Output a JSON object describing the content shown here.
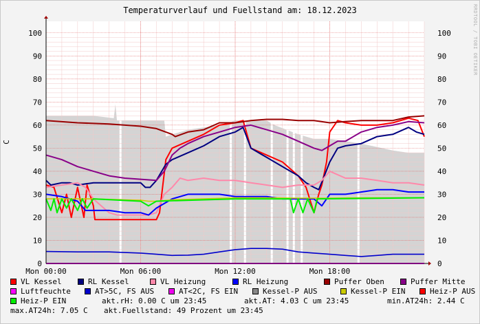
{
  "title": "Temperaturverlauf und Fuellstand am: 18.12.2023",
  "side_credit": "RRDTOOL / TOBI OETIKER",
  "chart_data": {
    "type": "line",
    "title": "Temperaturverlauf und Fuellstand am: 18.12.2023",
    "ylabel": "C",
    "ylim": [
      0,
      105
    ],
    "xlim": [
      0,
      24
    ],
    "yticks": [
      "0",
      "10",
      "20",
      "30",
      "40",
      "50",
      "60",
      "70",
      "80",
      "90",
      "100"
    ],
    "xticks": [
      {
        "t": 0,
        "label": "Mon 00:00"
      },
      {
        "t": 6,
        "label": "Mon 06:00"
      },
      {
        "t": 12,
        "label": "Mon 12:00"
      },
      {
        "t": 18,
        "label": "Mon 18:00"
      }
    ],
    "grid": true,
    "fuellstand_area": {
      "name": "Fuellstand",
      "color": "#d4d4d4",
      "points": [
        [
          0,
          64
        ],
        [
          3,
          64
        ],
        [
          4.3,
          63
        ],
        [
          4.4,
          69
        ],
        [
          4.5,
          62
        ],
        [
          6,
          62
        ],
        [
          7.5,
          62
        ],
        [
          7.6,
          55
        ],
        [
          8,
          56
        ],
        [
          9,
          58
        ],
        [
          11,
          60
        ],
        [
          12,
          62
        ],
        [
          14,
          62
        ],
        [
          14.5,
          60
        ],
        [
          16,
          56
        ],
        [
          17,
          54
        ],
        [
          18,
          54
        ],
        [
          19,
          53
        ],
        [
          20,
          52
        ],
        [
          22,
          49
        ],
        [
          23,
          48
        ],
        [
          24,
          48
        ]
      ],
      "gaps": [
        4.7,
        11.7,
        12.6,
        14.3,
        15.3,
        15.7,
        16.2,
        19.8
      ]
    },
    "series": [
      {
        "name": "VL Kessel",
        "color": "#ff0000",
        "points": [
          [
            0,
            34
          ],
          [
            0.5,
            33
          ],
          [
            1,
            22
          ],
          [
            1.3,
            30
          ],
          [
            1.6,
            20
          ],
          [
            2,
            33
          ],
          [
            2.4,
            20
          ],
          [
            2.6,
            34
          ],
          [
            3,
            25
          ],
          [
            3.1,
            19
          ],
          [
            5,
            19
          ],
          [
            7,
            19
          ],
          [
            7.2,
            22
          ],
          [
            7.6,
            45
          ],
          [
            8,
            50
          ],
          [
            9,
            53
          ],
          [
            10,
            56
          ],
          [
            11,
            60
          ],
          [
            12,
            61
          ],
          [
            12.5,
            62
          ],
          [
            13,
            50
          ],
          [
            14,
            47
          ],
          [
            15,
            44
          ],
          [
            16,
            38
          ],
          [
            16.5,
            33
          ],
          [
            17,
            22
          ],
          [
            17.3,
            30
          ],
          [
            17.5,
            34
          ],
          [
            17.8,
            44
          ],
          [
            18,
            57
          ],
          [
            18.5,
            62
          ],
          [
            19,
            61
          ],
          [
            20,
            60
          ],
          [
            21,
            60
          ],
          [
            22,
            61
          ],
          [
            23,
            63
          ],
          [
            23.6,
            62
          ],
          [
            24,
            55
          ]
        ]
      },
      {
        "name": "RL Kessel",
        "color": "#000080",
        "points": [
          [
            0,
            36
          ],
          [
            0.3,
            34
          ],
          [
            1,
            35
          ],
          [
            1.5,
            35
          ],
          [
            2,
            34
          ],
          [
            3,
            35
          ],
          [
            4,
            35
          ],
          [
            5,
            35
          ],
          [
            6,
            35
          ],
          [
            6.3,
            33
          ],
          [
            6.6,
            33
          ],
          [
            7,
            36
          ],
          [
            7.6,
            43
          ],
          [
            8,
            45
          ],
          [
            9,
            48
          ],
          [
            10,
            51
          ],
          [
            11,
            55
          ],
          [
            12,
            57
          ],
          [
            12.5,
            59
          ],
          [
            13,
            50
          ],
          [
            14,
            46
          ],
          [
            15,
            42
          ],
          [
            16,
            38
          ],
          [
            16.5,
            35
          ],
          [
            17,
            33
          ],
          [
            17.3,
            32
          ],
          [
            17.6,
            37
          ],
          [
            18,
            44
          ],
          [
            18.5,
            50
          ],
          [
            19,
            51
          ],
          [
            20,
            52
          ],
          [
            21,
            55
          ],
          [
            22,
            56
          ],
          [
            23,
            59
          ],
          [
            23.5,
            57
          ],
          [
            24,
            56
          ]
        ]
      },
      {
        "name": "VL Heizung",
        "color": "#ff88aa",
        "points": [
          [
            0,
            33
          ],
          [
            1,
            34
          ],
          [
            2,
            35
          ],
          [
            2.5,
            33
          ],
          [
            3,
            28
          ],
          [
            3.5,
            25
          ],
          [
            4,
            22
          ],
          [
            4.5,
            21
          ],
          [
            5,
            21
          ],
          [
            6,
            21
          ],
          [
            6.5,
            21
          ],
          [
            7,
            22
          ],
          [
            7.5,
            30
          ],
          [
            8,
            33
          ],
          [
            8.5,
            37
          ],
          [
            9,
            36
          ],
          [
            10,
            37
          ],
          [
            11,
            36
          ],
          [
            12,
            36
          ],
          [
            13,
            35
          ],
          [
            14,
            34
          ],
          [
            15,
            33
          ],
          [
            16,
            34
          ],
          [
            17,
            34
          ],
          [
            17.5,
            36
          ],
          [
            18,
            40
          ],
          [
            19,
            37
          ],
          [
            20,
            37
          ],
          [
            21,
            36
          ],
          [
            22,
            35
          ],
          [
            23,
            35
          ],
          [
            24,
            34
          ]
        ]
      },
      {
        "name": "RL Heizung",
        "color": "#0000ff",
        "points": [
          [
            0,
            30
          ],
          [
            1,
            29
          ],
          [
            2,
            27
          ],
          [
            2.5,
            23
          ],
          [
            3,
            23
          ],
          [
            4,
            23
          ],
          [
            5,
            22
          ],
          [
            6,
            22
          ],
          [
            6.5,
            21
          ],
          [
            7,
            24
          ],
          [
            8,
            28
          ],
          [
            9,
            30
          ],
          [
            10,
            30
          ],
          [
            11,
            30
          ],
          [
            12,
            29
          ],
          [
            13,
            29
          ],
          [
            14,
            29
          ],
          [
            15,
            28
          ],
          [
            16,
            28
          ],
          [
            17,
            28
          ],
          [
            17.5,
            25
          ],
          [
            18,
            30
          ],
          [
            19,
            30
          ],
          [
            20,
            31
          ],
          [
            21,
            32
          ],
          [
            22,
            32
          ],
          [
            23,
            31
          ],
          [
            24,
            31
          ]
        ]
      },
      {
        "name": "Puffer Oben",
        "color": "#990000",
        "points": [
          [
            0,
            62
          ],
          [
            2,
            61
          ],
          [
            4,
            60.5
          ],
          [
            6,
            59.5
          ],
          [
            7,
            58.5
          ],
          [
            8,
            56
          ],
          [
            8.2,
            55
          ],
          [
            9,
            57
          ],
          [
            10,
            58
          ],
          [
            11,
            61
          ],
          [
            12,
            61
          ],
          [
            13,
            62
          ],
          [
            14,
            62.5
          ],
          [
            15,
            62.5
          ],
          [
            16,
            62
          ],
          [
            17,
            62
          ],
          [
            18,
            61
          ],
          [
            19,
            61.5
          ],
          [
            20,
            62
          ],
          [
            21,
            62
          ],
          [
            22,
            62
          ],
          [
            23,
            63.5
          ],
          [
            24,
            64
          ]
        ]
      },
      {
        "name": "Puffer Mitte",
        "color": "#880088",
        "points": [
          [
            0,
            47
          ],
          [
            1,
            45
          ],
          [
            2,
            42
          ],
          [
            3,
            40
          ],
          [
            4,
            38
          ],
          [
            5,
            37
          ],
          [
            6,
            36.5
          ],
          [
            7,
            36
          ],
          [
            7.5,
            40
          ],
          [
            8,
            47
          ],
          [
            8.5,
            50
          ],
          [
            9,
            52
          ],
          [
            10,
            55
          ],
          [
            11,
            57
          ],
          [
            12,
            59
          ],
          [
            13,
            60
          ],
          [
            14,
            58
          ],
          [
            15,
            56
          ],
          [
            16,
            53
          ],
          [
            17,
            50
          ],
          [
            17.5,
            49
          ],
          [
            18,
            51
          ],
          [
            18.5,
            53
          ],
          [
            19,
            53
          ],
          [
            20,
            57
          ],
          [
            21,
            59
          ],
          [
            22,
            60
          ],
          [
            23,
            61.5
          ],
          [
            24,
            61
          ]
        ]
      },
      {
        "name": "Luftfeuchte",
        "color": "#ff00ff",
        "points": [
          [
            0,
            0
          ],
          [
            24,
            0
          ]
        ]
      },
      {
        "name": "AT>5C, FS AUS",
        "color": "#0000cc",
        "points": [
          [
            0,
            5.2
          ],
          [
            2,
            5
          ],
          [
            4,
            5
          ],
          [
            6,
            4.5
          ],
          [
            7,
            4
          ],
          [
            8,
            3.5
          ],
          [
            9,
            3.6
          ],
          [
            10,
            4
          ],
          [
            11,
            5
          ],
          [
            12,
            6
          ],
          [
            13,
            6.5
          ],
          [
            14,
            6.5
          ],
          [
            15,
            6.2
          ],
          [
            16,
            5
          ],
          [
            17,
            4.5
          ],
          [
            18,
            4
          ],
          [
            19,
            3.5
          ],
          [
            20,
            3
          ],
          [
            21,
            3.5
          ],
          [
            22,
            4
          ],
          [
            23,
            4
          ],
          [
            24,
            4
          ]
        ]
      },
      {
        "name": "AT<2C, FS EIN",
        "color": "#ee00ee",
        "points": []
      },
      {
        "name": "Kessel-P AUS",
        "color": "#888888",
        "points": []
      },
      {
        "name": "Kessel-P EIN",
        "color": "#cccc00",
        "points": [
          [
            0,
            28
          ],
          [
            3,
            28
          ],
          [
            5,
            27.6
          ],
          [
            6,
            27.4
          ],
          [
            6.5,
            27
          ],
          [
            7,
            27
          ],
          [
            8,
            27.6
          ],
          [
            10,
            28
          ],
          [
            12,
            28.5
          ],
          [
            14,
            28.5
          ],
          [
            16,
            28.3
          ],
          [
            18,
            28.3
          ],
          [
            20,
            28.5
          ],
          [
            22,
            28.5
          ],
          [
            24,
            28.5
          ]
        ]
      },
      {
        "name": "Heiz-P AUS",
        "color": "#ff0000",
        "points": []
      },
      {
        "name": "Heiz-P EIN",
        "color": "#00ee00",
        "points": [
          [
            0,
            28
          ],
          [
            0.3,
            23
          ],
          [
            0.5,
            28
          ],
          [
            0.7,
            22
          ],
          [
            1,
            28
          ],
          [
            1.3,
            24
          ],
          [
            1.6,
            28
          ],
          [
            2,
            23
          ],
          [
            2.3,
            28
          ],
          [
            2.6,
            24
          ],
          [
            3,
            28
          ],
          [
            6,
            27
          ],
          [
            6.5,
            25
          ],
          [
            7,
            27
          ],
          [
            12,
            28
          ],
          [
            15.5,
            28
          ],
          [
            15.7,
            22
          ],
          [
            16,
            28
          ],
          [
            16.3,
            22
          ],
          [
            16.6,
            28
          ],
          [
            17,
            22
          ],
          [
            17.2,
            28
          ],
          [
            24,
            28.5
          ]
        ]
      }
    ]
  },
  "legend": [
    {
      "label": "VL Kessel",
      "color": "#ff0000"
    },
    {
      "label": "RL Kessel",
      "color": "#000080"
    },
    {
      "label": "VL Heizung",
      "color": "#ff88aa"
    },
    {
      "label": "RL Heizung",
      "color": "#0000ff"
    },
    {
      "label": "Puffer Oben",
      "color": "#990000"
    },
    {
      "label": "Puffer Mitte",
      "color": "#880088"
    },
    {
      "label": "Luftfeuchte",
      "color": "#ff00ff"
    },
    {
      "label": "AT>5C, FS AUS",
      "color": "#0000cc"
    },
    {
      "label": "AT<2C, FS EIN",
      "color": "#ee00ee"
    },
    {
      "label": "Kessel-P AUS",
      "color": "#888888"
    },
    {
      "label": "Kessel-P EIN",
      "color": "#cccc00"
    },
    {
      "label": "Heiz-P AUS",
      "color": "#ff0000"
    },
    {
      "label": "Heiz-P EIN",
      "color": "#00ee00"
    }
  ],
  "stats": {
    "rh": "akt.rH: 0.00 C um 23:45",
    "at": "akt.AT: 4.03 C um 23:45",
    "min_at": "min.AT24h: 2.44 C",
    "max_at": "max.AT24h: 7.05 C",
    "fuellstand": "akt.Fuellstand:   49 Prozent um 23:45"
  }
}
